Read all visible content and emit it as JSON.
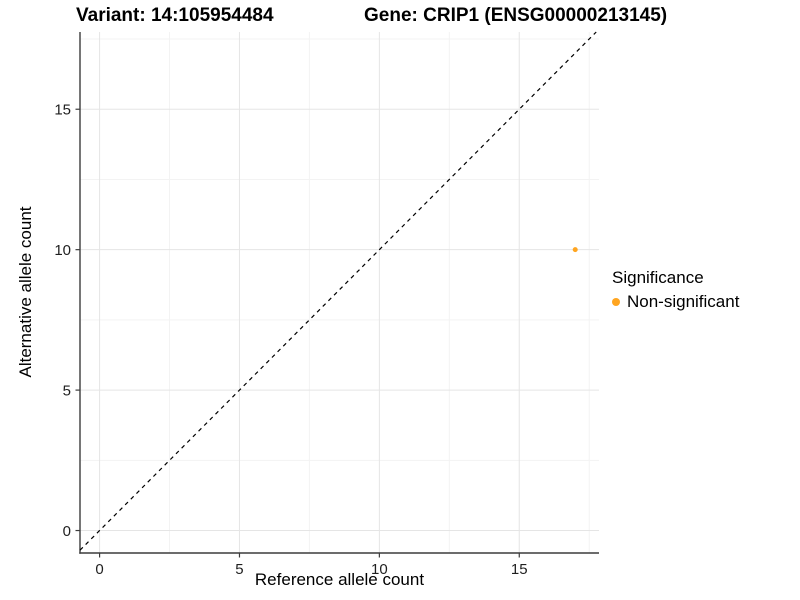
{
  "chart_data": {
    "type": "scatter",
    "title_left": "Variant: 14:105954484",
    "title_right": "Gene: CRIP1 (ENSG00000213145)",
    "xlabel": "Reference allele count",
    "ylabel": "Alternative allele count",
    "xlim": [
      -0.7,
      17.85
    ],
    "ylim": [
      -0.8,
      17.75
    ],
    "x_major_ticks": [
      0,
      5,
      10,
      15
    ],
    "y_major_ticks": [
      0,
      5,
      10,
      15
    ],
    "x_minor_ticks": [
      2.5,
      7.5,
      12.5,
      17.5
    ],
    "y_minor_ticks": [
      2.5,
      7.5,
      12.5,
      17.5
    ],
    "grid": true,
    "points": [
      {
        "x": 17,
        "y": 10,
        "series": "Non-significant"
      }
    ],
    "reference_line": {
      "slope": 1,
      "intercept": 0,
      "style": "dashed"
    },
    "legend": {
      "title": "Significance",
      "position": "right",
      "items": [
        {
          "label": "Non-significant",
          "color": "#FFA520"
        }
      ]
    },
    "colors": {
      "point": "#FFA520",
      "grid_major": "#E5E5E5",
      "grid_minor": "#F3F3F3",
      "axis_line": "#3C3C3C",
      "tick_label": "#1F1F1F",
      "reference_line": "#000000",
      "background": "#FFFFFF"
    }
  }
}
